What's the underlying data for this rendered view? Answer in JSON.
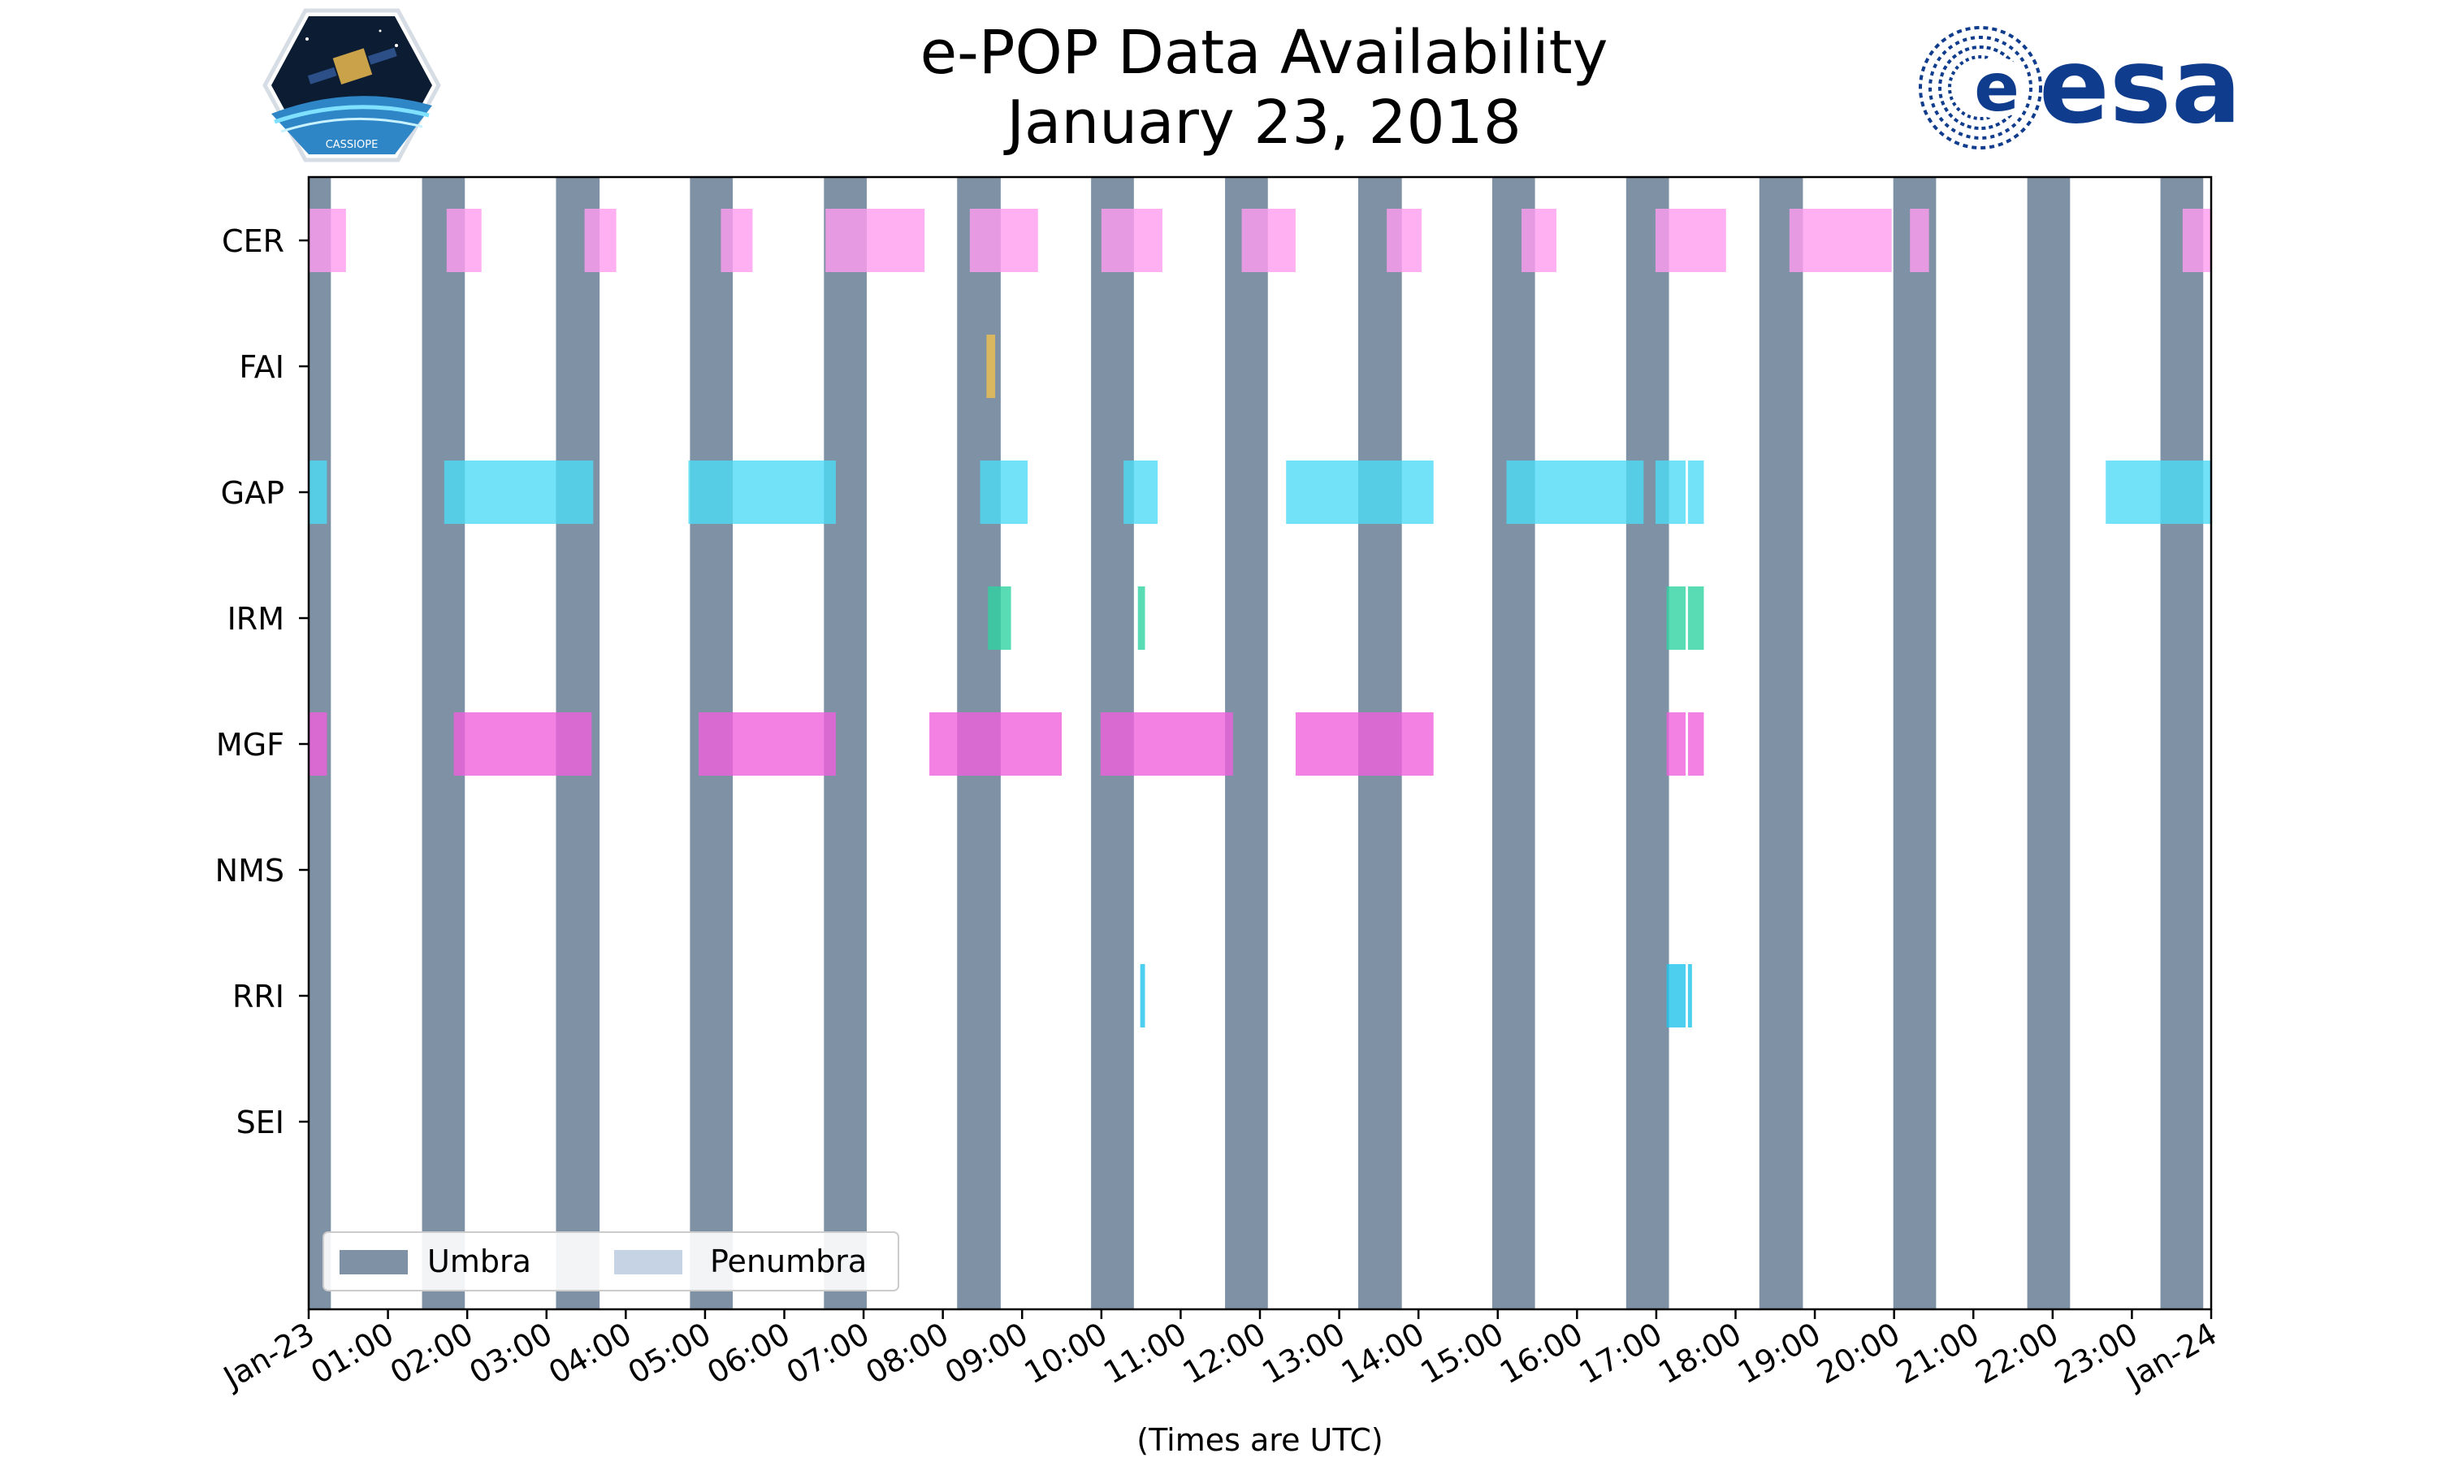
{
  "title": {
    "line1": "e-POP Data Availability",
    "line2": "January 23, 2018"
  },
  "logos": {
    "left_text": "CASSIOPE",
    "right_text": "esa"
  },
  "colors": {
    "umbra": "#7f91a5",
    "penumbra": "#c5d3e4",
    "CER": "#ff9cf0",
    "FAI": "#f0c050",
    "GAP": "#4ddbf5",
    "IRM": "#30d2a0",
    "MGF": "#f060dc",
    "RRI": "#20c4ec",
    "esa_blue": "#0f3c8c"
  },
  "chart_data": {
    "type": "timeline",
    "xlabel": "(Times are UTC)",
    "x_range_hours": [
      0,
      24
    ],
    "x_ticks": [
      {
        "h": 0,
        "label": "Jan-23"
      },
      {
        "h": 1,
        "label": "01:00"
      },
      {
        "h": 2,
        "label": "02:00"
      },
      {
        "h": 3,
        "label": "03:00"
      },
      {
        "h": 4,
        "label": "04:00"
      },
      {
        "h": 5,
        "label": "05:00"
      },
      {
        "h": 6,
        "label": "06:00"
      },
      {
        "h": 7,
        "label": "07:00"
      },
      {
        "h": 8,
        "label": "08:00"
      },
      {
        "h": 9,
        "label": "09:00"
      },
      {
        "h": 10,
        "label": "10:00"
      },
      {
        "h": 11,
        "label": "11:00"
      },
      {
        "h": 12,
        "label": "12:00"
      },
      {
        "h": 13,
        "label": "13:00"
      },
      {
        "h": 14,
        "label": "14:00"
      },
      {
        "h": 15,
        "label": "15:00"
      },
      {
        "h": 16,
        "label": "16:00"
      },
      {
        "h": 17,
        "label": "17:00"
      },
      {
        "h": 18,
        "label": "18:00"
      },
      {
        "h": 19,
        "label": "19:00"
      },
      {
        "h": 20,
        "label": "20:00"
      },
      {
        "h": 21,
        "label": "21:00"
      },
      {
        "h": 22,
        "label": "22:00"
      },
      {
        "h": 23,
        "label": "23:00"
      },
      {
        "h": 24,
        "label": "Jan-24"
      }
    ],
    "instruments": [
      "CER",
      "FAI",
      "GAP",
      "IRM",
      "MGF",
      "NMS",
      "RRI",
      "SEI"
    ],
    "umbra": [
      [
        0.0,
        0.28
      ],
      [
        1.43,
        1.97
      ],
      [
        3.12,
        3.67
      ],
      [
        4.81,
        5.35
      ],
      [
        6.5,
        7.04
      ],
      [
        8.18,
        8.73
      ],
      [
        9.87,
        10.41
      ],
      [
        11.56,
        12.1
      ],
      [
        13.24,
        13.79
      ],
      [
        14.93,
        15.47
      ],
      [
        16.62,
        17.16
      ],
      [
        18.3,
        18.85
      ],
      [
        19.99,
        20.53
      ],
      [
        21.68,
        22.22
      ],
      [
        23.36,
        23.9
      ]
    ],
    "penumbra": [],
    "legend": [
      {
        "key": "umbra",
        "label": "Umbra"
      },
      {
        "key": "penumbra",
        "label": "Penumbra"
      }
    ],
    "legend_position": "lower-left",
    "series": [
      {
        "name": "CER",
        "intervals": [
          [
            0.0,
            0.47
          ],
          [
            1.74,
            2.18
          ],
          [
            3.48,
            3.88
          ],
          [
            5.2,
            5.6
          ],
          [
            6.52,
            7.77
          ],
          [
            8.34,
            9.2
          ],
          [
            10.0,
            10.77
          ],
          [
            11.77,
            12.45
          ],
          [
            13.6,
            14.04
          ],
          [
            15.3,
            15.74
          ],
          [
            16.99,
            17.88
          ],
          [
            18.68,
            19.97
          ],
          [
            20.2,
            20.44
          ],
          [
            23.64,
            24.0
          ]
        ]
      },
      {
        "name": "FAI",
        "intervals": [
          [
            8.55,
            8.66
          ]
        ]
      },
      {
        "name": "GAP",
        "intervals": [
          [
            0.0,
            0.23
          ],
          [
            1.71,
            3.59
          ],
          [
            4.79,
            6.65
          ],
          [
            8.47,
            9.07
          ],
          [
            10.28,
            10.71
          ],
          [
            12.33,
            14.19
          ],
          [
            15.11,
            16.84
          ],
          [
            16.99,
            17.37
          ],
          [
            17.4,
            17.6
          ],
          [
            22.67,
            24.0
          ]
        ]
      },
      {
        "name": "IRM",
        "intervals": [
          [
            8.57,
            8.86
          ],
          [
            10.46,
            10.55
          ],
          [
            17.13,
            17.37
          ],
          [
            17.4,
            17.6
          ]
        ]
      },
      {
        "name": "MGF",
        "intervals": [
          [
            0.0,
            0.23
          ],
          [
            1.83,
            3.57
          ],
          [
            4.92,
            6.65
          ],
          [
            7.83,
            9.5
          ],
          [
            9.99,
            11.66
          ],
          [
            12.45,
            14.19
          ],
          [
            17.13,
            17.37
          ],
          [
            17.4,
            17.6
          ]
        ]
      },
      {
        "name": "NMS",
        "intervals": []
      },
      {
        "name": "RRI",
        "intervals": [
          [
            10.49,
            10.55
          ],
          [
            17.13,
            17.37
          ],
          [
            17.4,
            17.45
          ]
        ]
      },
      {
        "name": "SEI",
        "intervals": []
      }
    ]
  }
}
